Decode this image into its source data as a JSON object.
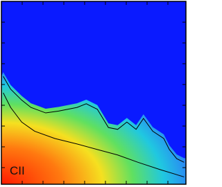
{
  "chart_data": {
    "type": "contour",
    "annotation": "CII",
    "xlim": [
      0,
      1
    ],
    "ylim": [
      0,
      1
    ],
    "series": [
      {
        "color": "#000000",
        "x": [
          0.01,
          0.05,
          0.11,
          0.16,
          0.24,
          0.31,
          0.41,
          0.46,
          0.52,
          0.58,
          0.63,
          0.68,
          0.73,
          0.77,
          0.82,
          0.88,
          0.91,
          0.95,
          0.99
        ],
        "values": [
          0.59,
          0.52,
          0.46,
          0.42,
          0.39,
          0.4,
          0.42,
          0.44,
          0.41,
          0.31,
          0.3,
          0.34,
          0.3,
          0.36,
          0.29,
          0.25,
          0.19,
          0.14,
          0.12
        ]
      },
      {
        "color": "#000000",
        "x": [
          0.01,
          0.05,
          0.11,
          0.18,
          0.29,
          0.41,
          0.52,
          0.63,
          0.74,
          0.86,
          0.99
        ],
        "values": [
          0.5,
          0.42,
          0.34,
          0.29,
          0.25,
          0.22,
          0.19,
          0.16,
          0.12,
          0.08,
          0.04
        ]
      }
    ]
  }
}
